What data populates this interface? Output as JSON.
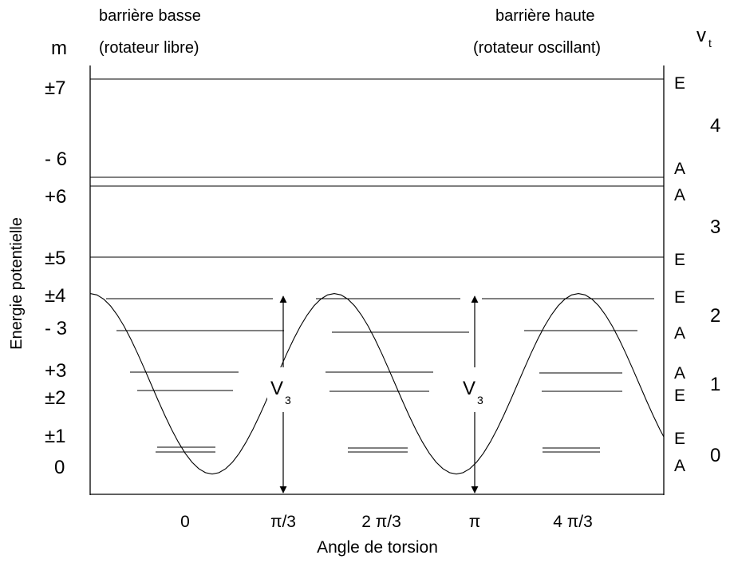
{
  "headers": {
    "left_line1": "barrière basse",
    "left_line2": "(rotateur libre)",
    "right_line1": "barrière haute",
    "right_line2": "(rotateur oscillant)"
  },
  "m_label": "m",
  "vt_label": {
    "main": "v",
    "sub": "t"
  },
  "y_axis_label": "Energie potentielle",
  "x_axis_label": "Angle de torsion",
  "x_ticks": [
    "0",
    "π/3",
    "2 π/3",
    "π",
    "4 π/3"
  ],
  "barrier_label": {
    "main": "V",
    "sub": "3"
  },
  "m_labels": [
    "±7",
    "- 6",
    "+6",
    "±5",
    "±4",
    "- 3",
    "+3",
    "±2",
    "±1",
    "0"
  ],
  "symmetry_labels": [
    "E",
    "A",
    "A",
    "E",
    "E",
    "A",
    "A",
    "E",
    "E",
    "A"
  ],
  "vt_values": [
    "4",
    "3",
    "2",
    "1",
    "0"
  ]
}
